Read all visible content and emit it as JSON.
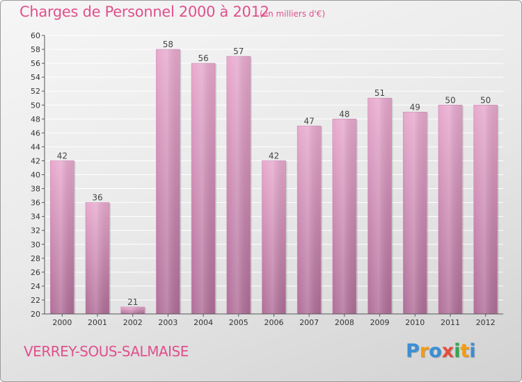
{
  "header": {
    "title": "Charges de Personnel 2000 à 2012",
    "subtitle": "(en milliers d'€)"
  },
  "footer": {
    "commune": "VERREY-SOUS-SALMAISE"
  },
  "logo": {
    "letters": [
      "P",
      "r",
      "o",
      "x",
      "i",
      "t",
      "i"
    ],
    "colors": [
      "#3a8fd6",
      "#f39c12",
      "#3a8fd6",
      "#e74c3c",
      "#2ea84f",
      "#f39c12",
      "#3a8fd6"
    ]
  },
  "colors": {
    "bar_light": "#e8a9ce",
    "bar_dark": "#b06e98",
    "axis": "#555555",
    "grid": "#ffffff"
  },
  "chart_data": {
    "type": "bar",
    "categories": [
      "2000",
      "2001",
      "2002",
      "2003",
      "2004",
      "2005",
      "2006",
      "2007",
      "2008",
      "2009",
      "2010",
      "2011",
      "2012"
    ],
    "values": [
      42,
      36,
      21,
      58,
      56,
      57,
      42,
      47,
      48,
      51,
      49,
      50,
      50
    ],
    "ylim": [
      20,
      60
    ],
    "ytick_step": 2,
    "ytick_labels": [
      "20",
      "22",
      "24",
      "26",
      "28",
      "30",
      "32",
      "34",
      "36",
      "38",
      "40",
      "42",
      "44",
      "46",
      "48",
      "50",
      "52",
      "54",
      "56",
      "58",
      "60"
    ],
    "grid": true,
    "legend": "none"
  }
}
